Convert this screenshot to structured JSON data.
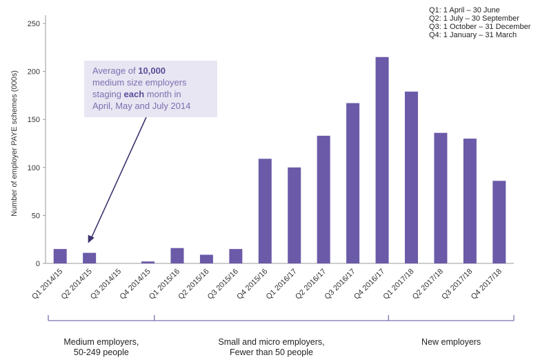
{
  "chart_data": {
    "type": "bar",
    "title": "",
    "xlabel": "",
    "ylabel": "Number of employer PAYE schemes (000s)",
    "ylim": [
      0,
      250
    ],
    "yticks": [
      0,
      50,
      100,
      150,
      200,
      250
    ],
    "grid": false,
    "bar_color": "#6a5aa8",
    "categories": [
      "Q1 2014/15",
      "Q2 2014/15",
      "Q3 2014/15",
      "Q4 2014/15",
      "Q1 2015/16",
      "Q2 2015/16",
      "Q3 2015/16",
      "Q4 2015/16",
      "Q1 2016/17",
      "Q2 2016/17",
      "Q3 2016/17",
      "Q4 2016/17",
      "Q1 2017/18",
      "Q2 2017/18",
      "Q3 2017/18",
      "Q4 2017/18"
    ],
    "values": [
      15,
      11,
      0,
      2,
      16,
      9,
      15,
      109,
      100,
      133,
      167,
      215,
      179,
      136,
      130,
      86
    ],
    "quarter_notes": [
      "Q1: 1 April – 30 June",
      "Q2: 1 July – 30 September",
      "Q3: 1 October – 31 December",
      "Q4: 1 January – 31 March"
    ],
    "annotation": {
      "lines": [
        [
          {
            "t": "Average of ",
            "b": false
          },
          {
            "t": "10,000",
            "b": true
          }
        ],
        [
          {
            "t": "medium size employers",
            "b": false
          }
        ],
        [
          {
            "t": "staging ",
            "b": false
          },
          {
            "t": "each",
            "b": true
          },
          {
            "t": " month in",
            "b": false
          }
        ],
        [
          {
            "t": "April, May and July 2014",
            "b": false
          }
        ]
      ],
      "box_color": "#e9e6f3",
      "text_color": "#7b6fb0",
      "arrow_target_category": "Q2 2014/15"
    },
    "groups": [
      {
        "label_lines": [
          "Medium employers,",
          "50-249 people"
        ],
        "from": "Q1 2014/15",
        "to": "Q4 2014/15"
      },
      {
        "label_lines": [
          "Small and micro employers,",
          "Fewer than 50 people"
        ],
        "from": "Q1 2015/16",
        "to": "Q4 2016/17"
      },
      {
        "label_lines": [
          "New employers"
        ],
        "from": "Q1 2017/18",
        "to": "Q4 2017/18"
      }
    ],
    "group_line_color": "#7b6fb0"
  }
}
